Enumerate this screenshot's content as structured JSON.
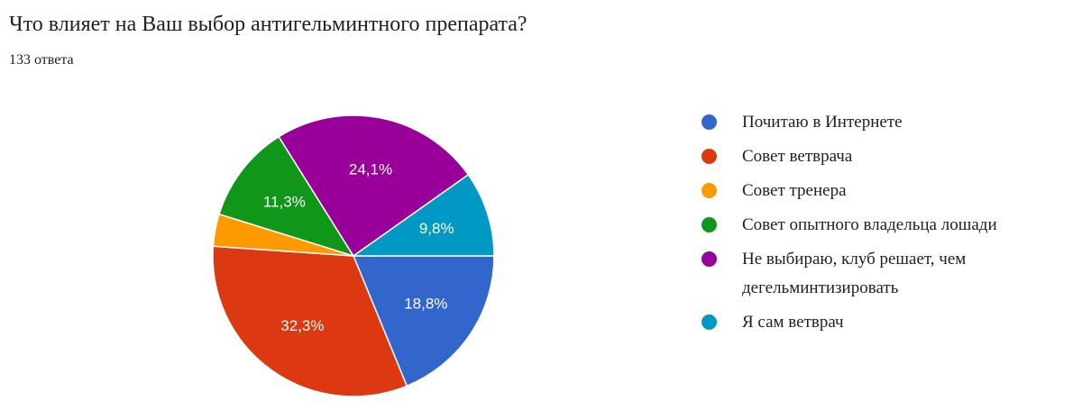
{
  "header": {
    "title": "Что влияет на Ваш выбор антигельминтного препарата?",
    "subtitle": "133 ответа"
  },
  "chart_data": {
    "type": "pie",
    "title": "Что влияет на Ваш выбор антигельминтного препарата?",
    "subtitle": "133 ответа",
    "legend_position": "right",
    "slices": [
      {
        "label": "Почитаю в Интернете",
        "value": 18.8,
        "display": "18,8%",
        "color": "#3366cc"
      },
      {
        "label": "Совет ветврача",
        "value": 32.3,
        "display": "32,3%",
        "color": "#dc3912"
      },
      {
        "label": "Совет тренера",
        "value": 3.7,
        "display": "",
        "color": "#ff9900"
      },
      {
        "label": "Совет опытного владельца лошади",
        "value": 11.3,
        "display": "11,3%",
        "color": "#109618"
      },
      {
        "label": "Не выбираю, клуб решает, чем дегельминтизировать",
        "value": 24.1,
        "display": "24,1%",
        "color": "#990099"
      },
      {
        "label": "Я сам ветврач",
        "value": 9.8,
        "display": "9,8%",
        "color": "#0099c6"
      }
    ]
  }
}
